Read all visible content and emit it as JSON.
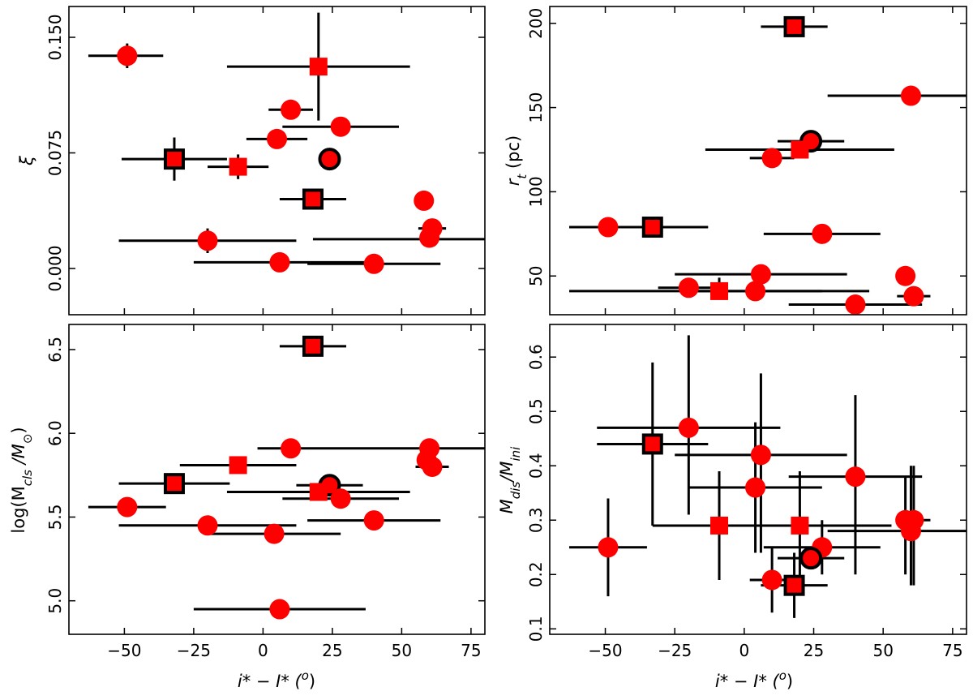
{
  "figure": {
    "xlabel_main": "i* − I* (",
    "xlabel_unit": "o",
    "xlabel_close": ")"
  },
  "chart_data": [
    {
      "type": "scatter",
      "id": "xi",
      "ylabel": "ξ",
      "xlim": [
        -70,
        80
      ],
      "ylim": [
        -0.03,
        0.17
      ],
      "xticks": [
        -50,
        -25,
        0,
        25,
        50,
        75
      ],
      "xticklabels": [
        "−50",
        "−25",
        "0",
        "25",
        "50",
        "75"
      ],
      "yticks": [
        0.0,
        0.075,
        0.15
      ],
      "yticklabels": [
        "0.000",
        "0.075",
        "0.150"
      ],
      "points": [
        {
          "x": -49,
          "y": 0.138,
          "xerr": [
            14,
            13
          ],
          "yerr": [
            0.008,
            0.008
          ],
          "marker": "circle",
          "outline": false
        },
        {
          "x": 20,
          "y": 0.131,
          "xerr": [
            33,
            33
          ],
          "yerr": [
            0.035,
            0.035
          ],
          "marker": "square",
          "outline": false
        },
        {
          "x": 10,
          "y": 0.103,
          "xerr": [
            8,
            8
          ],
          "yerr": [
            0,
            0
          ],
          "marker": "circle",
          "outline": false
        },
        {
          "x": 28,
          "y": 0.092,
          "xerr": [
            21,
            21
          ],
          "yerr": [
            0.005,
            0.005
          ],
          "marker": "circle",
          "outline": false
        },
        {
          "x": 5,
          "y": 0.084,
          "xerr": [
            11,
            11
          ],
          "yerr": [
            0,
            0
          ],
          "marker": "circle",
          "outline": false
        },
        {
          "x": 24,
          "y": 0.071,
          "xerr": [
            3,
            3
          ],
          "yerr": [
            0,
            0
          ],
          "marker": "circle",
          "outline": true
        },
        {
          "x": -32,
          "y": 0.071,
          "xerr": [
            19,
            19
          ],
          "yerr": [
            0.014,
            0.014
          ],
          "marker": "square",
          "outline": true
        },
        {
          "x": -9,
          "y": 0.066,
          "xerr": [
            11,
            11
          ],
          "yerr": [
            0.008,
            0.008
          ],
          "marker": "square",
          "outline": false
        },
        {
          "x": 18,
          "y": 0.045,
          "xerr": [
            12,
            12
          ],
          "yerr": [
            0,
            0
          ],
          "marker": "square",
          "outline": true
        },
        {
          "x": 58,
          "y": 0.044,
          "xerr": [
            0,
            0
          ],
          "yerr": [
            0,
            0
          ],
          "marker": "circle",
          "outline": false
        },
        {
          "x": 61,
          "y": 0.026,
          "xerr": [
            5,
            5
          ],
          "yerr": [
            0,
            0
          ],
          "marker": "circle",
          "outline": false
        },
        {
          "x": 60,
          "y": 0.02,
          "xerr": [
            0,
            0
          ],
          "yerr": [
            0,
            0
          ],
          "marker": "circle",
          "outline": false
        },
        {
          "x": -20,
          "y": 0.018,
          "xerr": [
            32,
            32
          ],
          "yerr": [
            0.008,
            0.008
          ],
          "marker": "circle",
          "outline": false
        },
        {
          "x": 6,
          "y": 0.004,
          "xerr": [
            31,
            31
          ],
          "yerr": [
            0,
            0
          ],
          "marker": "circle",
          "outline": false
        },
        {
          "x": 40,
          "y": 0.003,
          "xerr": [
            24,
            24
          ],
          "yerr": [
            0,
            0
          ],
          "marker": "circle",
          "outline": false
        }
      ],
      "extra_errorbars": [
        {
          "y": 0.019,
          "x1": 18,
          "x2": 80
        }
      ]
    },
    {
      "type": "scatter",
      "id": "rt",
      "ylabel_main": "r",
      "ylabel_sub": "t",
      "ylabel_unit": " (pc)",
      "xlim": [
        -70,
        80
      ],
      "ylim": [
        27,
        210
      ],
      "xticks": [
        -50,
        -25,
        0,
        25,
        50,
        75
      ],
      "xticklabels": [
        "−50",
        "−25",
        "0",
        "25",
        "50",
        "75"
      ],
      "yticks": [
        50,
        100,
        150,
        200
      ],
      "yticklabels": [
        "50",
        "100",
        "150",
        "200"
      ],
      "points": [
        {
          "x": 18,
          "y": 198,
          "xerr": [
            12,
            12
          ],
          "yerr": [
            0,
            0
          ],
          "marker": "square",
          "outline": true
        },
        {
          "x": 60,
          "y": 157,
          "xerr": [
            30,
            22
          ],
          "yerr": [
            0,
            0
          ],
          "marker": "circle",
          "outline": false
        },
        {
          "x": 24,
          "y": 130,
          "xerr": [
            12,
            12
          ],
          "yerr": [
            0,
            0
          ],
          "marker": "circle",
          "outline": true
        },
        {
          "x": 20,
          "y": 125,
          "xerr": [
            34,
            34
          ],
          "yerr": [
            0,
            0
          ],
          "marker": "square",
          "outline": false
        },
        {
          "x": 10,
          "y": 120,
          "xerr": [
            8,
            8
          ],
          "yerr": [
            0,
            0
          ],
          "marker": "circle",
          "outline": false
        },
        {
          "x": -33,
          "y": 79,
          "xerr": [
            30,
            20
          ],
          "yerr": [
            0,
            0
          ],
          "marker": "square",
          "outline": true
        },
        {
          "x": -49,
          "y": 79,
          "xerr": [
            0,
            0
          ],
          "yerr": [
            0,
            0
          ],
          "marker": "circle",
          "outline": false
        },
        {
          "x": 28,
          "y": 75,
          "xerr": [
            21,
            21
          ],
          "yerr": [
            0,
            0
          ],
          "marker": "circle",
          "outline": false
        },
        {
          "x": 6,
          "y": 51,
          "xerr": [
            31,
            31
          ],
          "yerr": [
            0,
            0
          ],
          "marker": "circle",
          "outline": false
        },
        {
          "x": 58,
          "y": 50,
          "xerr": [
            3,
            3
          ],
          "yerr": [
            0,
            0
          ],
          "marker": "circle",
          "outline": false
        },
        {
          "x": -20,
          "y": 43,
          "xerr": [
            11,
            11
          ],
          "yerr": [
            0,
            0
          ],
          "marker": "circle",
          "outline": false
        },
        {
          "x": -9,
          "y": 41,
          "xerr": [
            54,
            54
          ],
          "yerr": [
            0,
            8
          ],
          "marker": "square",
          "outline": false
        },
        {
          "x": 4,
          "y": 41,
          "xerr": [
            24,
            24
          ],
          "yerr": [
            0,
            0
          ],
          "marker": "circle",
          "outline": false
        },
        {
          "x": 61,
          "y": 38,
          "xerr": [
            6,
            6
          ],
          "yerr": [
            0,
            0
          ],
          "marker": "circle",
          "outline": false
        },
        {
          "x": 40,
          "y": 33,
          "xerr": [
            24,
            24
          ],
          "yerr": [
            0,
            0
          ],
          "marker": "circle",
          "outline": false
        }
      ],
      "extra_errorbars": []
    },
    {
      "type": "scatter",
      "id": "mcls",
      "ylabel_main": "log(M",
      "ylabel_sub": "cls",
      "ylabel_mid": " /M",
      "ylabel_sub2": "⊙",
      "ylabel_close": ")",
      "xlim": [
        -70,
        80
      ],
      "ylim": [
        4.8,
        6.65
      ],
      "xticks": [
        -50,
        -25,
        0,
        25,
        50,
        75
      ],
      "xticklabels": [
        "−50",
        "−25",
        "0",
        "25",
        "50",
        "75"
      ],
      "yticks": [
        5.0,
        5.5,
        6.0,
        6.5
      ],
      "yticklabels": [
        "5.0",
        "5.5",
        "6.0",
        "6.5"
      ],
      "points": [
        {
          "x": 18,
          "y": 6.52,
          "xerr": [
            12,
            12
          ],
          "yerr": [
            0,
            0
          ],
          "marker": "square",
          "outline": true
        },
        {
          "x": 10,
          "y": 5.91,
          "xerr": [
            0,
            0
          ],
          "yerr": [
            0,
            0
          ],
          "marker": "circle",
          "outline": false
        },
        {
          "x": 60,
          "y": 5.91,
          "xerr": [
            0,
            0
          ],
          "yerr": [
            0,
            0
          ],
          "marker": "circle",
          "outline": false
        },
        {
          "x": 59,
          "y": 5.84,
          "xerr": [
            0,
            0
          ],
          "yerr": [
            0,
            0
          ],
          "marker": "circle",
          "outline": false
        },
        {
          "x": -9,
          "y": 5.81,
          "xerr": [
            21,
            21
          ],
          "yerr": [
            0,
            0
          ],
          "marker": "square",
          "outline": false
        },
        {
          "x": 61,
          "y": 5.8,
          "xerr": [
            6,
            6
          ],
          "yerr": [
            0,
            0
          ],
          "marker": "circle",
          "outline": false
        },
        {
          "x": -32,
          "y": 5.7,
          "xerr": [
            20,
            20
          ],
          "yerr": [
            0,
            0
          ],
          "marker": "square",
          "outline": true
        },
        {
          "x": 24,
          "y": 5.69,
          "xerr": [
            12,
            12
          ],
          "yerr": [
            0,
            0
          ],
          "marker": "circle",
          "outline": true
        },
        {
          "x": 20,
          "y": 5.65,
          "xerr": [
            33,
            33
          ],
          "yerr": [
            0,
            0
          ],
          "marker": "square",
          "outline": false
        },
        {
          "x": 28,
          "y": 5.61,
          "xerr": [
            21,
            21
          ],
          "yerr": [
            0,
            0
          ],
          "marker": "circle",
          "outline": false
        },
        {
          "x": -49,
          "y": 5.56,
          "xerr": [
            14,
            14
          ],
          "yerr": [
            0,
            0
          ],
          "marker": "circle",
          "outline": false
        },
        {
          "x": -20,
          "y": 5.45,
          "xerr": [
            32,
            32
          ],
          "yerr": [
            0,
            0
          ],
          "marker": "circle",
          "outline": false
        },
        {
          "x": 40,
          "y": 5.48,
          "xerr": [
            24,
            24
          ],
          "yerr": [
            0,
            0
          ],
          "marker": "circle",
          "outline": false
        },
        {
          "x": 4,
          "y": 5.4,
          "xerr": [
            24,
            24
          ],
          "yerr": [
            0,
            0
          ],
          "marker": "circle",
          "outline": false
        },
        {
          "x": 6,
          "y": 4.95,
          "xerr": [
            31,
            31
          ],
          "yerr": [
            0,
            0
          ],
          "marker": "circle",
          "outline": false
        }
      ],
      "extra_errorbars": [
        {
          "y": 5.91,
          "x1": -2,
          "x2": 80
        }
      ]
    },
    {
      "type": "scatter",
      "id": "mdis",
      "ylabel_main": "M",
      "ylabel_sub": "dis",
      "ylabel_mid": "/M",
      "ylabel_sub2": "ini",
      "xlim": [
        -70,
        80
      ],
      "ylim": [
        0.09,
        0.66
      ],
      "xticks": [
        -50,
        -25,
        0,
        25,
        50,
        75
      ],
      "xticklabels": [
        "−50",
        "−25",
        "0",
        "25",
        "50",
        "75"
      ],
      "yticks": [
        0.1,
        0.2,
        0.3,
        0.4,
        0.5,
        0.6
      ],
      "yticklabels": [
        "0.1",
        "0.2",
        "0.3",
        "0.4",
        "0.5",
        "0.6"
      ],
      "points": [
        {
          "x": -20,
          "y": 0.47,
          "xerr": [
            33,
            33
          ],
          "yerr": [
            0.16,
            0.17
          ],
          "marker": "circle",
          "outline": false
        },
        {
          "x": -33,
          "y": 0.44,
          "xerr": [
            20,
            20
          ],
          "yerr": [
            0.15,
            0.15
          ],
          "marker": "square",
          "outline": true
        },
        {
          "x": 6,
          "y": 0.42,
          "xerr": [
            31,
            31
          ],
          "yerr": [
            0.18,
            0.15
          ],
          "marker": "circle",
          "outline": false
        },
        {
          "x": 40,
          "y": 0.38,
          "xerr": [
            24,
            24
          ],
          "yerr": [
            0.18,
            0.15
          ],
          "marker": "circle",
          "outline": false
        },
        {
          "x": 4,
          "y": 0.36,
          "xerr": [
            24,
            24
          ],
          "yerr": [
            0.12,
            0.12
          ],
          "marker": "circle",
          "outline": false
        },
        {
          "x": 58,
          "y": 0.3,
          "xerr": [
            0,
            0
          ],
          "yerr": [
            0.1,
            0.08
          ],
          "marker": "circle",
          "outline": false
        },
        {
          "x": 61,
          "y": 0.3,
          "xerr": [
            6,
            6
          ],
          "yerr": [
            0.12,
            0.1
          ],
          "marker": "circle",
          "outline": false
        },
        {
          "x": -9,
          "y": 0.29,
          "xerr": [
            24,
            24
          ],
          "yerr": [
            0.1,
            0.1
          ],
          "marker": "square",
          "outline": false
        },
        {
          "x": 20,
          "y": 0.29,
          "xerr": [
            33,
            33
          ],
          "yerr": [
            0.1,
            0.1
          ],
          "marker": "square",
          "outline": false
        },
        {
          "x": 60,
          "y": 0.28,
          "xerr": [
            0,
            0
          ],
          "yerr": [
            0.1,
            0.12
          ],
          "marker": "circle",
          "outline": false
        },
        {
          "x": -49,
          "y": 0.25,
          "xerr": [
            14,
            14
          ],
          "yerr": [
            0.09,
            0.09
          ],
          "marker": "circle",
          "outline": false
        },
        {
          "x": 28,
          "y": 0.25,
          "xerr": [
            21,
            21
          ],
          "yerr": [
            0.05,
            0.05
          ],
          "marker": "circle",
          "outline": false
        },
        {
          "x": 24,
          "y": 0.23,
          "xerr": [
            12,
            12
          ],
          "yerr": [
            0,
            0
          ],
          "marker": "circle",
          "outline": true
        },
        {
          "x": 10,
          "y": 0.19,
          "xerr": [
            8,
            8
          ],
          "yerr": [
            0.06,
            0.06
          ],
          "marker": "circle",
          "outline": false
        },
        {
          "x": 18,
          "y": 0.18,
          "xerr": [
            12,
            12
          ],
          "yerr": [
            0.06,
            0.06
          ],
          "marker": "square",
          "outline": true
        }
      ],
      "extra_errorbars": [
        {
          "y": 0.28,
          "x1": 30,
          "x2": 80
        }
      ]
    }
  ],
  "colors": {
    "marker_fill": "#ff0000",
    "marker_outline": "#000000",
    "errorbar": "#000000",
    "axes": "#000000"
  }
}
